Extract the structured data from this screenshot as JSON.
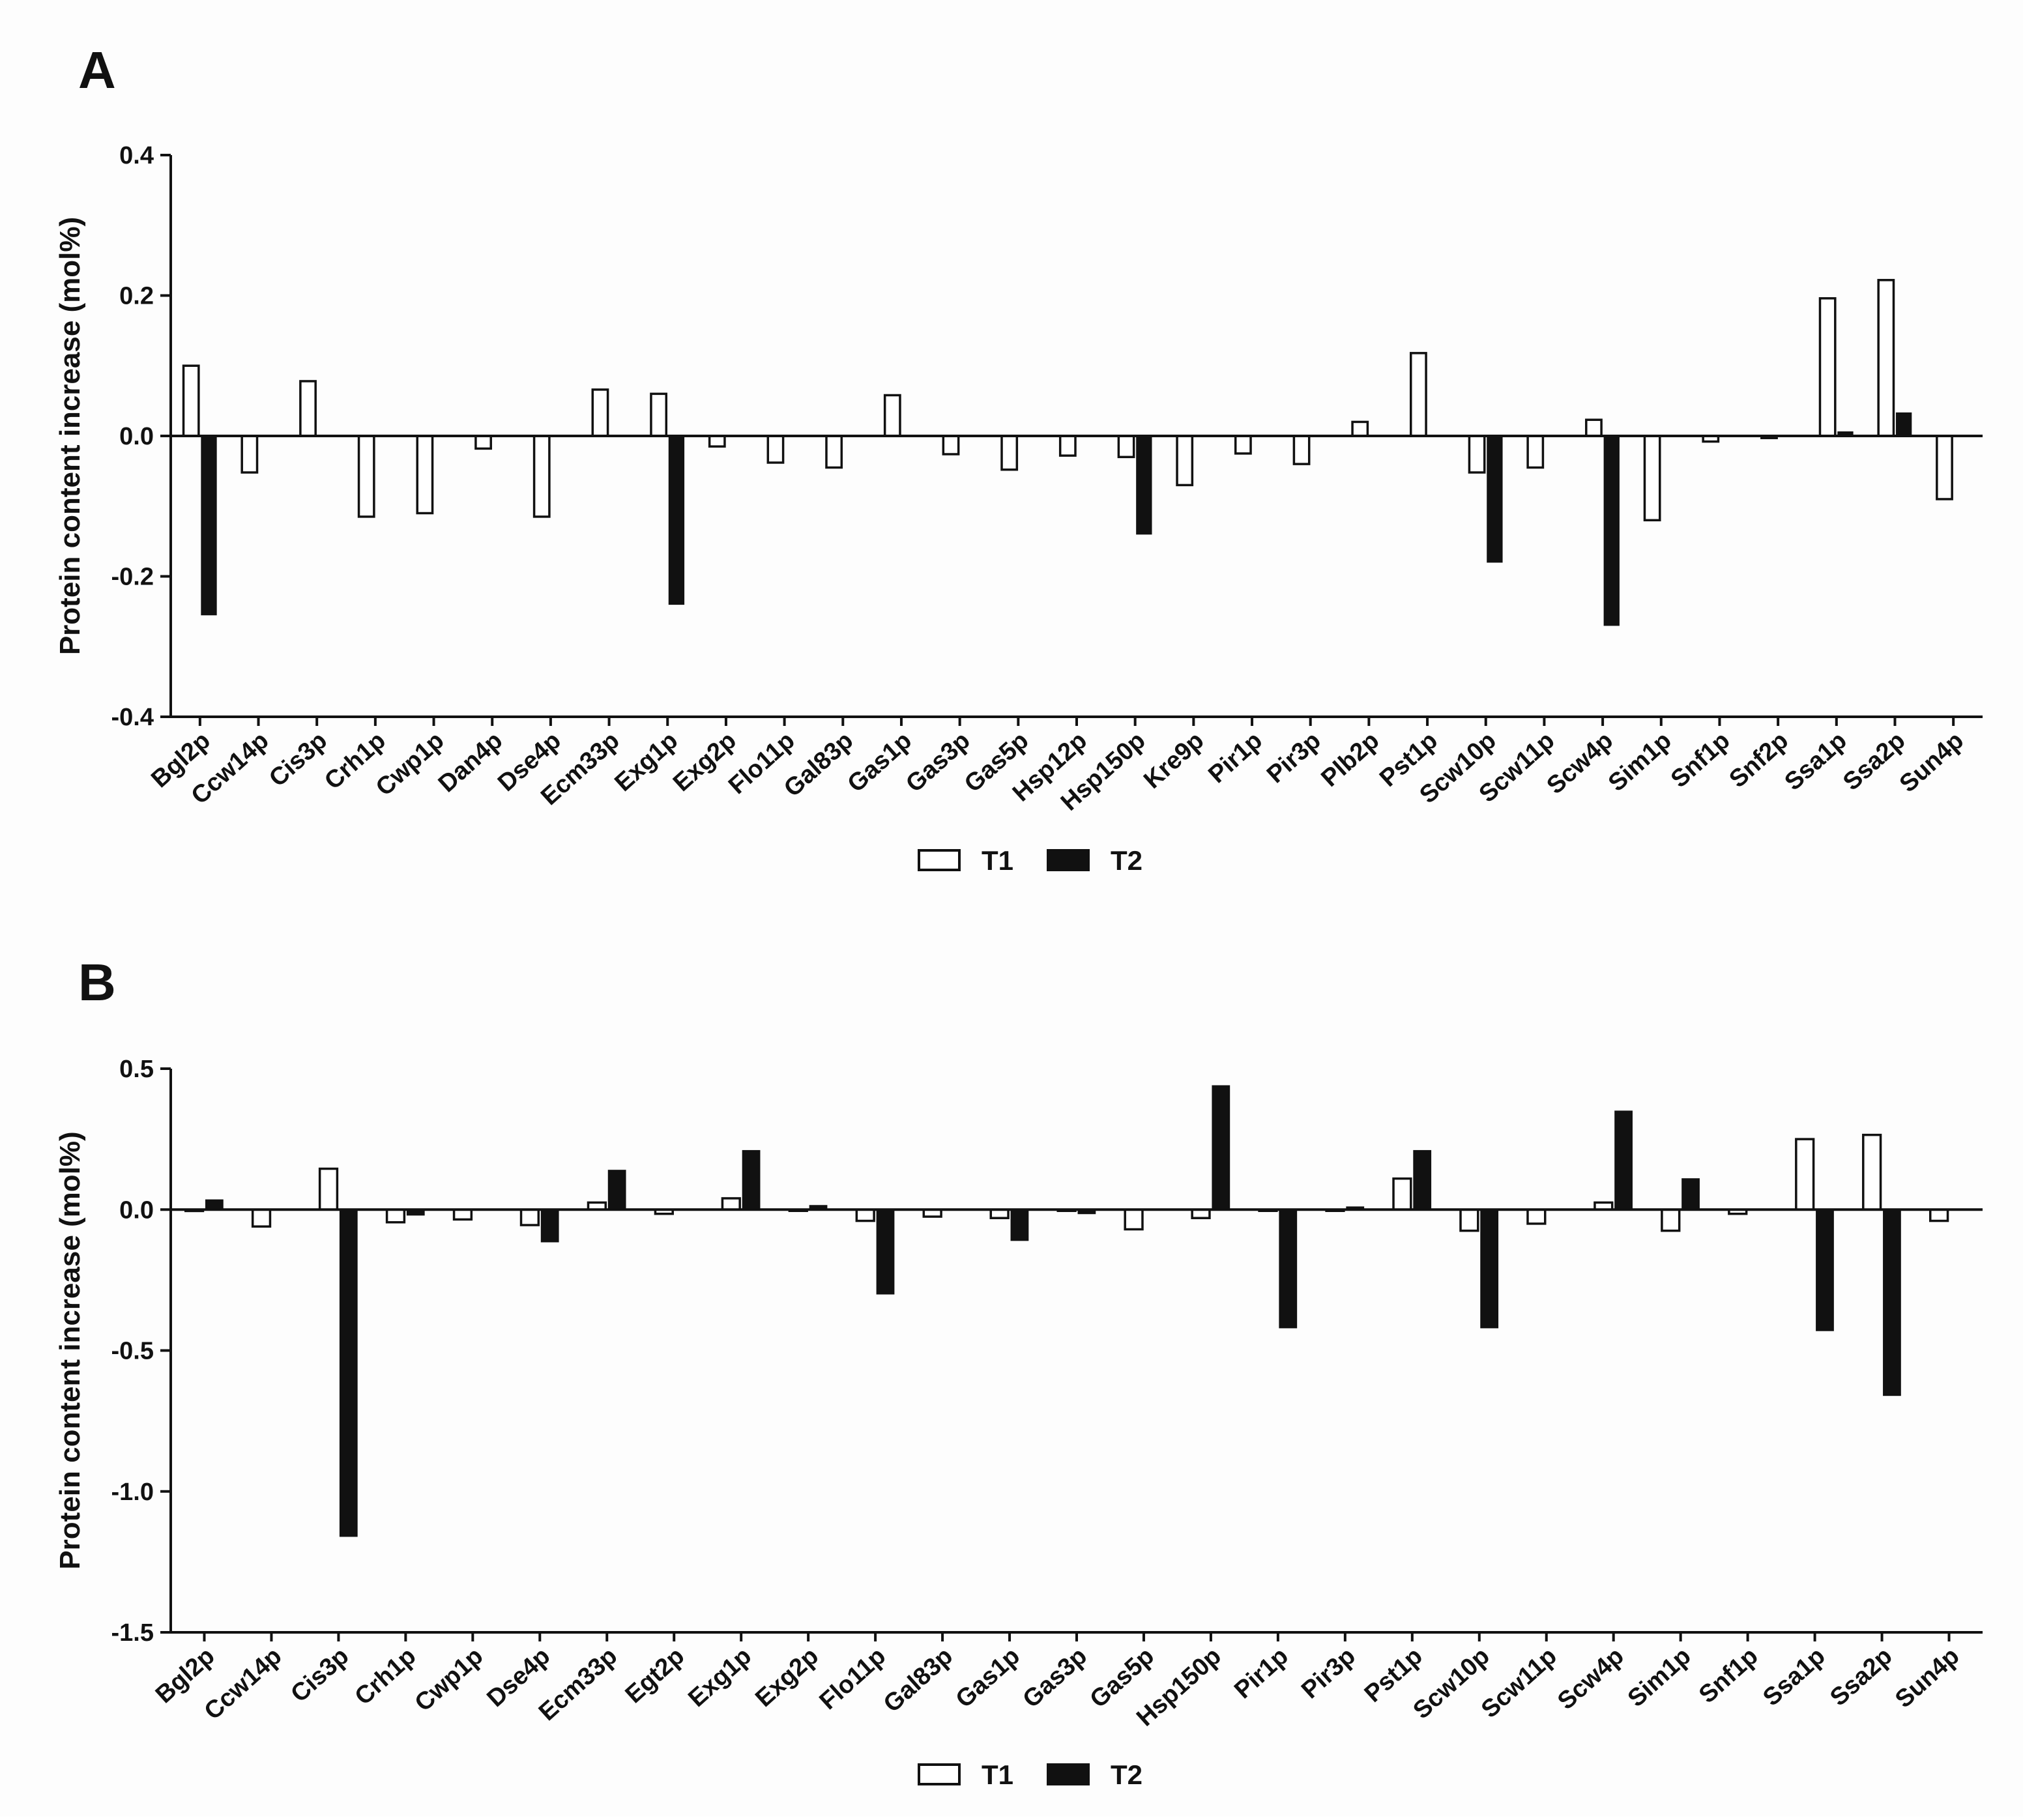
{
  "figure": {
    "panels": [
      "A",
      "B"
    ],
    "legend": {
      "labels": [
        "T1",
        "T2"
      ],
      "colors": [
        "#ffffff",
        "#111111"
      ]
    },
    "colors": {
      "axis": "#111111",
      "t1_fill": "#ffffff",
      "t1_stroke": "#111111",
      "t2_fill": "#111111",
      "background": "#fdfdfd"
    }
  },
  "chart_data": [
    {
      "type": "bar",
      "panel_label": "A",
      "ylabel": "Protein content increase (mol%)",
      "xlabel": "",
      "ylim": [
        -0.4,
        0.4
      ],
      "yticks": [
        0.4,
        0.2,
        0.0,
        -0.2,
        -0.4
      ],
      "ytick_labels": [
        "0.4",
        "0.2",
        "0.0",
        "-0.2",
        "-0.4"
      ],
      "legend_position": "bottom-center",
      "categories": [
        "Bgl2p",
        "Ccw14p",
        "Cis3p",
        "Crh1p",
        "Cwp1p",
        "Dan4p",
        "Dse4p",
        "Ecm33p",
        "Exg1p",
        "Exg2p",
        "Flo11p",
        "Gal83p",
        "Gas1p",
        "Gas3p",
        "Gas5p",
        "Hsp12p",
        "Hsp150p",
        "Kre9p",
        "Pir1p",
        "Pir3p",
        "Plb2p",
        "Pst1p",
        "Scw10p",
        "Scw11p",
        "Scw4p",
        "Sim1p",
        "Snf1p",
        "Snf2p",
        "Ssa1p",
        "Ssa2p",
        "Sun4p"
      ],
      "series": [
        {
          "name": "T1",
          "values": [
            0.1,
            -0.052,
            0.078,
            -0.115,
            -0.11,
            -0.018,
            -0.115,
            0.066,
            0.06,
            -0.015,
            -0.038,
            -0.045,
            0.058,
            -0.026,
            -0.048,
            -0.028,
            -0.03,
            -0.07,
            -0.025,
            -0.04,
            0.02,
            0.118,
            -0.052,
            -0.045,
            0.023,
            -0.12,
            -0.008,
            -0.003,
            0.196,
            0.222,
            -0.09
          ]
        },
        {
          "name": "T2",
          "values": [
            -0.255,
            0,
            0,
            0,
            0,
            0,
            0,
            0,
            -0.24,
            0,
            0,
            0,
            0,
            0,
            0,
            0,
            -0.14,
            0,
            0,
            0,
            0,
            0,
            -0.18,
            0,
            -0.27,
            0,
            0,
            0,
            0.006,
            0.033,
            0
          ]
        }
      ]
    },
    {
      "type": "bar",
      "panel_label": "B",
      "ylabel": "Protein content increase (mol%)",
      "xlabel": "",
      "ylim": [
        -1.5,
        0.5
      ],
      "yticks": [
        0.5,
        0.0,
        -0.5,
        -1.0,
        -1.5
      ],
      "ytick_labels": [
        "0.5",
        "0.0",
        "-0.5",
        "-1.0",
        "-1.5"
      ],
      "legend_position": "bottom-center",
      "categories": [
        "Bgl2p",
        "Ccw14p",
        "Cis3p",
        "Crh1p",
        "Cwp1p",
        "Dse4p",
        "Ecm33p",
        "Egt2p",
        "Exg1p",
        "Exg2p",
        "Flo11p",
        "Gal83p",
        "Gas1p",
        "Gas3p",
        "Gas5p",
        "Hsp150p",
        "Pir1p",
        "Pir3p",
        "Pst1p",
        "Scw10p",
        "Scw11p",
        "Scw4p",
        "Sim1p",
        "Snf1p",
        "Ssa1p",
        "Ssa2p",
        "Sun4p"
      ],
      "series": [
        {
          "name": "T1",
          "values": [
            -0.005,
            -0.06,
            0.145,
            -0.045,
            -0.035,
            -0.055,
            0.025,
            -0.015,
            0.04,
            0,
            -0.04,
            -0.025,
            -0.03,
            0,
            -0.07,
            -0.03,
            0,
            0,
            0.11,
            -0.075,
            -0.05,
            0.025,
            -0.075,
            -0.015,
            0.25,
            0.265,
            -0.04
          ]
        },
        {
          "name": "T2",
          "values": [
            0.035,
            0,
            -1.16,
            -0.02,
            0,
            -0.115,
            0.14,
            0,
            0.21,
            0.015,
            -0.3,
            0,
            -0.11,
            -0.015,
            0,
            0.44,
            -0.42,
            0.01,
            0.21,
            -0.42,
            0,
            0.35,
            0.11,
            0,
            -0.43,
            -0.66,
            0
          ]
        }
      ]
    }
  ]
}
